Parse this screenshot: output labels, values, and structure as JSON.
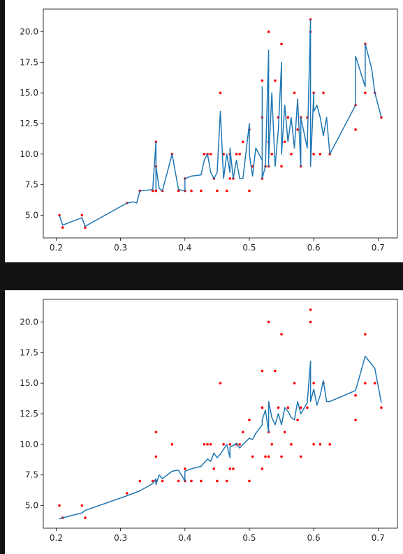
{
  "chart_data": [
    {
      "type": "line",
      "title": "",
      "xlabel": "",
      "ylabel": "",
      "xlim": [
        0.18,
        0.73
      ],
      "ylim": [
        3.15,
        21.85
      ],
      "xticks": [
        "0.2",
        "0.3",
        "0.4",
        "0.5",
        "0.6",
        "0.7"
      ],
      "yticks": [
        "5.0",
        "7.5",
        "10.0",
        "12.5",
        "15.0",
        "17.5",
        "20.0"
      ],
      "grid": false,
      "legend": "none",
      "colors": {
        "line": "#1f77b4",
        "points": "#ff0000"
      },
      "series": [
        {
          "type": "scatter",
          "x": [
            0.205,
            0.21,
            0.24,
            0.245,
            0.31,
            0.33,
            0.35,
            0.355,
            0.355,
            0.355,
            0.365,
            0.38,
            0.39,
            0.4,
            0.4,
            0.41,
            0.425,
            0.43,
            0.435,
            0.44,
            0.445,
            0.45,
            0.455,
            0.46,
            0.465,
            0.47,
            0.47,
            0.475,
            0.48,
            0.485,
            0.49,
            0.5,
            0.5,
            0.505,
            0.52,
            0.52,
            0.52,
            0.525,
            0.53,
            0.53,
            0.53,
            0.535,
            0.54,
            0.545,
            0.55,
            0.55,
            0.555,
            0.56,
            0.565,
            0.57,
            0.575,
            0.58,
            0.58,
            0.59,
            0.595,
            0.595,
            0.6,
            0.6,
            0.61,
            0.615,
            0.625,
            0.665,
            0.665,
            0.68,
            0.68,
            0.695,
            0.705
          ],
          "y": [
            5,
            4,
            5,
            4,
            6,
            7,
            7,
            9,
            11,
            7,
            7,
            10,
            7,
            8,
            7,
            7,
            7,
            10,
            10,
            10,
            8,
            7,
            15,
            10,
            7,
            8,
            10,
            8,
            10,
            10,
            11,
            7,
            12,
            9,
            8,
            13,
            16,
            9,
            11,
            9,
            20,
            10,
            16,
            13,
            9,
            19,
            11,
            13,
            10,
            15,
            12,
            9,
            13,
            13,
            20,
            21,
            10,
            15,
            10,
            15,
            10,
            12,
            14,
            19,
            15,
            15,
            13
          ]
        },
        {
          "type": "line",
          "x": [
            0.205,
            0.21,
            0.24,
            0.245,
            0.31,
            0.32,
            0.325,
            0.33,
            0.35,
            0.355,
            0.355,
            0.355,
            0.36,
            0.365,
            0.38,
            0.39,
            0.4,
            0.4,
            0.41,
            0.425,
            0.43,
            0.435,
            0.44,
            0.445,
            0.45,
            0.455,
            0.46,
            0.465,
            0.47,
            0.47,
            0.475,
            0.48,
            0.485,
            0.49,
            0.5,
            0.5,
            0.505,
            0.51,
            0.52,
            0.52,
            0.52,
            0.525,
            0.53,
            0.53,
            0.53,
            0.535,
            0.54,
            0.545,
            0.55,
            0.55,
            0.555,
            0.56,
            0.565,
            0.57,
            0.575,
            0.58,
            0.58,
            0.59,
            0.595,
            0.595,
            0.6,
            0.6,
            0.605,
            0.61,
            0.615,
            0.62,
            0.625,
            0.665,
            0.665,
            0.68,
            0.68,
            0.69,
            0.695,
            0.705
          ],
          "y": [
            5,
            4.2,
            4.8,
            4.1,
            6.0,
            6.1,
            6.0,
            7.0,
            7.1,
            11.0,
            7.1,
            9.0,
            7.2,
            7.0,
            10.0,
            7.1,
            7.0,
            8.0,
            8.2,
            8.3,
            9.5,
            10.0,
            8.5,
            8.0,
            8.5,
            13.5,
            8.0,
            10.0,
            8.5,
            10.5,
            8.0,
            9.5,
            8.0,
            8.0,
            12.5,
            10.0,
            8.2,
            10.5,
            9.5,
            15.5,
            8.0,
            9.0,
            18.5,
            9.0,
            9.5,
            15.0,
            9.0,
            12.0,
            17.5,
            10.0,
            14.0,
            11.0,
            13.0,
            10.5,
            14.5,
            9.0,
            13.0,
            10.5,
            21.0,
            9.0,
            15.0,
            13.5,
            14.0,
            13.0,
            11.5,
            13.0,
            10.0,
            14.0,
            18.0,
            15.5,
            19.0,
            17.0,
            15.0,
            13.0
          ]
        }
      ]
    },
    {
      "type": "line",
      "title": "",
      "xlabel": "",
      "ylabel": "",
      "xlim": [
        0.18,
        0.73
      ],
      "ylim": [
        3.15,
        21.85
      ],
      "xticks": [
        "0.2",
        "0.3",
        "0.4",
        "0.5",
        "0.6",
        "0.7"
      ],
      "yticks": [
        "5.0",
        "7.5",
        "10.0",
        "12.5",
        "15.0",
        "17.5",
        "20.0"
      ],
      "grid": false,
      "legend": "none",
      "colors": {
        "line": "#1f77b4",
        "points": "#ff0000"
      },
      "series": [
        {
          "type": "scatter",
          "x": [
            0.205,
            0.21,
            0.24,
            0.245,
            0.31,
            0.33,
            0.35,
            0.355,
            0.355,
            0.355,
            0.365,
            0.38,
            0.39,
            0.4,
            0.4,
            0.41,
            0.425,
            0.43,
            0.435,
            0.44,
            0.445,
            0.45,
            0.455,
            0.46,
            0.465,
            0.47,
            0.47,
            0.475,
            0.48,
            0.485,
            0.49,
            0.5,
            0.5,
            0.505,
            0.52,
            0.52,
            0.52,
            0.525,
            0.53,
            0.53,
            0.53,
            0.535,
            0.54,
            0.545,
            0.55,
            0.55,
            0.555,
            0.56,
            0.565,
            0.57,
            0.575,
            0.58,
            0.58,
            0.59,
            0.595,
            0.595,
            0.6,
            0.6,
            0.61,
            0.615,
            0.625,
            0.665,
            0.665,
            0.68,
            0.68,
            0.695,
            0.705
          ],
          "y": [
            5,
            4,
            5,
            4,
            6,
            7,
            7,
            9,
            11,
            7,
            7,
            10,
            7,
            8,
            7,
            7,
            7,
            10,
            10,
            10,
            8,
            7,
            15,
            10,
            7,
            8,
            10,
            8,
            10,
            10,
            11,
            7,
            12,
            9,
            8,
            13,
            16,
            9,
            11,
            9,
            20,
            10,
            16,
            13,
            9,
            19,
            11,
            13,
            10,
            15,
            12,
            9,
            13,
            13,
            20,
            21,
            10,
            15,
            10,
            15,
            10,
            12,
            14,
            19,
            15,
            15,
            13
          ]
        },
        {
          "type": "line",
          "x": [
            0.205,
            0.21,
            0.24,
            0.245,
            0.31,
            0.33,
            0.35,
            0.355,
            0.355,
            0.36,
            0.365,
            0.38,
            0.39,
            0.4,
            0.4,
            0.41,
            0.425,
            0.43,
            0.435,
            0.44,
            0.445,
            0.45,
            0.455,
            0.46,
            0.465,
            0.47,
            0.47,
            0.475,
            0.48,
            0.485,
            0.49,
            0.5,
            0.505,
            0.51,
            0.52,
            0.52,
            0.525,
            0.53,
            0.53,
            0.535,
            0.54,
            0.545,
            0.55,
            0.555,
            0.56,
            0.565,
            0.57,
            0.575,
            0.58,
            0.59,
            0.595,
            0.595,
            0.6,
            0.605,
            0.61,
            0.615,
            0.62,
            0.625,
            0.665,
            0.68,
            0.695,
            0.705
          ],
          "y": [
            3.9,
            4.0,
            4.4,
            4.6,
            5.8,
            6.2,
            6.8,
            7.2,
            6.7,
            7.5,
            7.2,
            7.8,
            7.9,
            7.0,
            7.8,
            8.0,
            8.2,
            8.5,
            8.8,
            8.6,
            9.3,
            8.9,
            9.2,
            9.6,
            10.0,
            8.9,
            9.8,
            9.9,
            10.1,
            9.7,
            10.0,
            10.5,
            10.4,
            10.9,
            11.6,
            12.0,
            12.8,
            11.0,
            13.5,
            12.2,
            11.6,
            12.5,
            11.6,
            13.0,
            12.7,
            12.2,
            12.0,
            13.5,
            12.5,
            13.4,
            16.8,
            13.5,
            14.5,
            13.2,
            14.0,
            15.2,
            13.5,
            13.5,
            14.4,
            17.2,
            16.2,
            13.4
          ]
        }
      ]
    }
  ]
}
